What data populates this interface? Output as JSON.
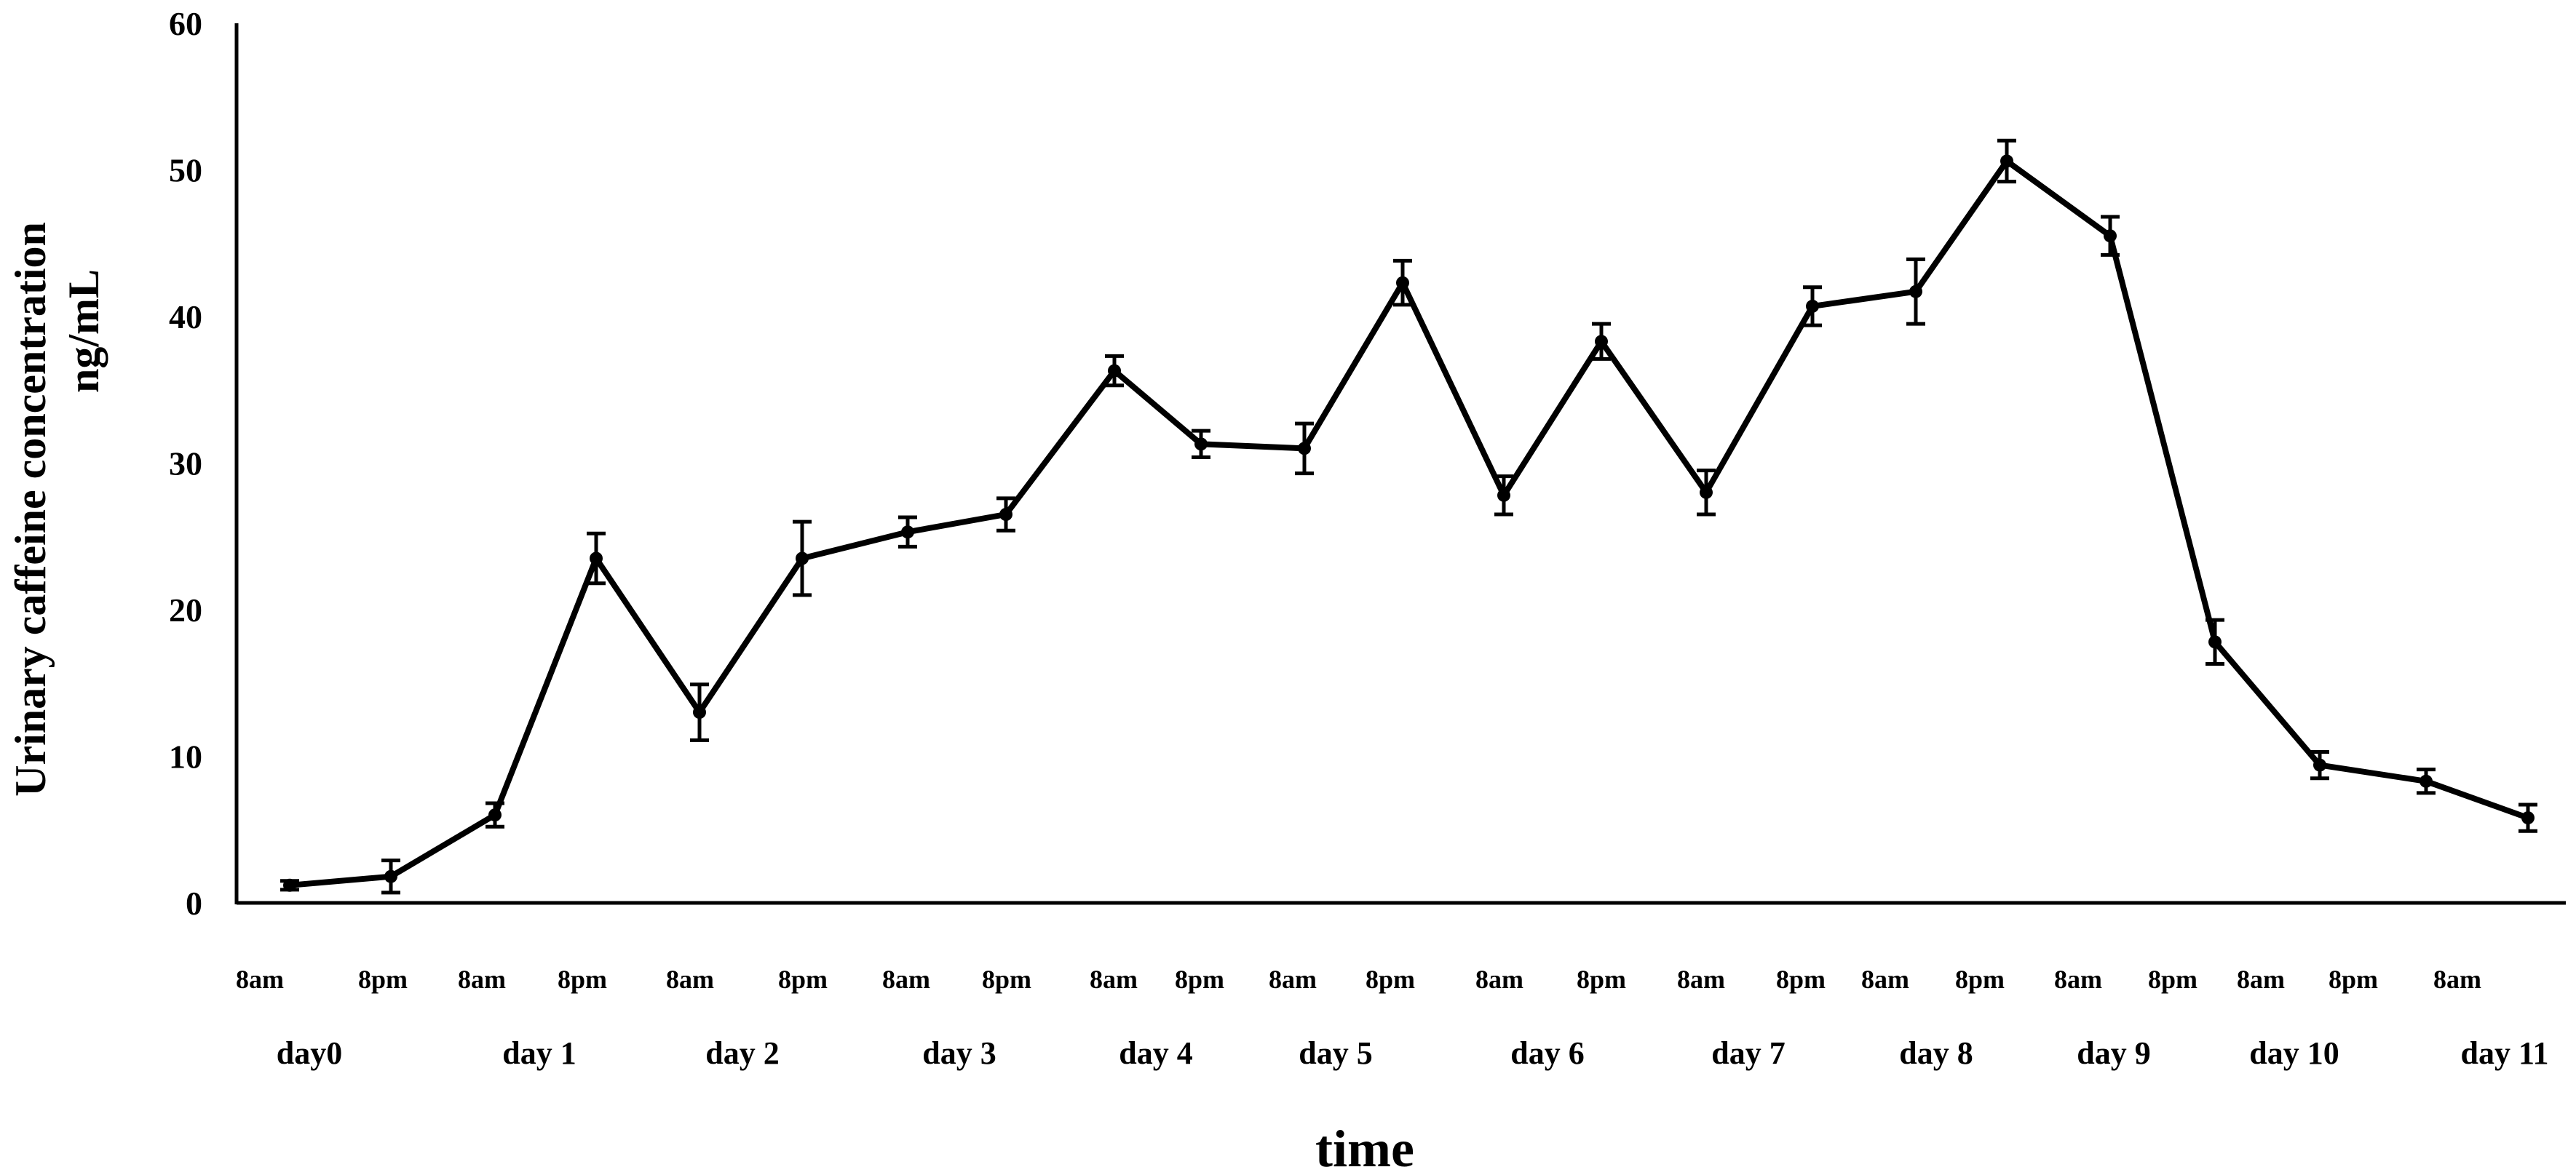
{
  "chart_data": {
    "type": "line",
    "xlabel": "time",
    "ylabel_line1": "Urinary caffeine concentration",
    "ylabel_line2": "ng/mL",
    "ylim": [
      0,
      60
    ],
    "yticks": [
      "0",
      "10",
      "20",
      "30",
      "40",
      "50",
      "60"
    ],
    "grid": false,
    "legend": "none",
    "time_labels": [
      "8am",
      "8pm",
      "8am",
      "8pm",
      "8am",
      "8pm",
      "8am",
      "8pm",
      "8am",
      "8pm",
      "8am",
      "8pm",
      "8am",
      "8pm",
      "8am",
      "8pm",
      "8am",
      "8pm",
      "8am",
      "8pm",
      "8am",
      "8pm",
      "8am"
    ],
    "day_labels": [
      "day0",
      "day 1",
      "day 2",
      "day 3",
      "day 4",
      "day 5",
      "day 6",
      "day 7",
      "day 8",
      "day 9",
      "day 10",
      "day 11"
    ],
    "series": [
      {
        "values": [
          1.2,
          1.8,
          6.0,
          23.5,
          13.0,
          23.5,
          25.3,
          26.5,
          36.3,
          31.3,
          31.0,
          42.3,
          27.8,
          38.3,
          28.0,
          40.7,
          41.7,
          50.6,
          45.5,
          17.8,
          9.4,
          8.3,
          5.8
        ],
        "errors": [
          0.3,
          1.1,
          0.8,
          1.7,
          1.9,
          2.5,
          1.0,
          1.1,
          1.0,
          0.9,
          1.7,
          1.5,
          1.3,
          1.2,
          1.5,
          1.3,
          2.2,
          1.4,
          1.3,
          1.5,
          0.9,
          0.8,
          0.9
        ]
      }
    ]
  }
}
